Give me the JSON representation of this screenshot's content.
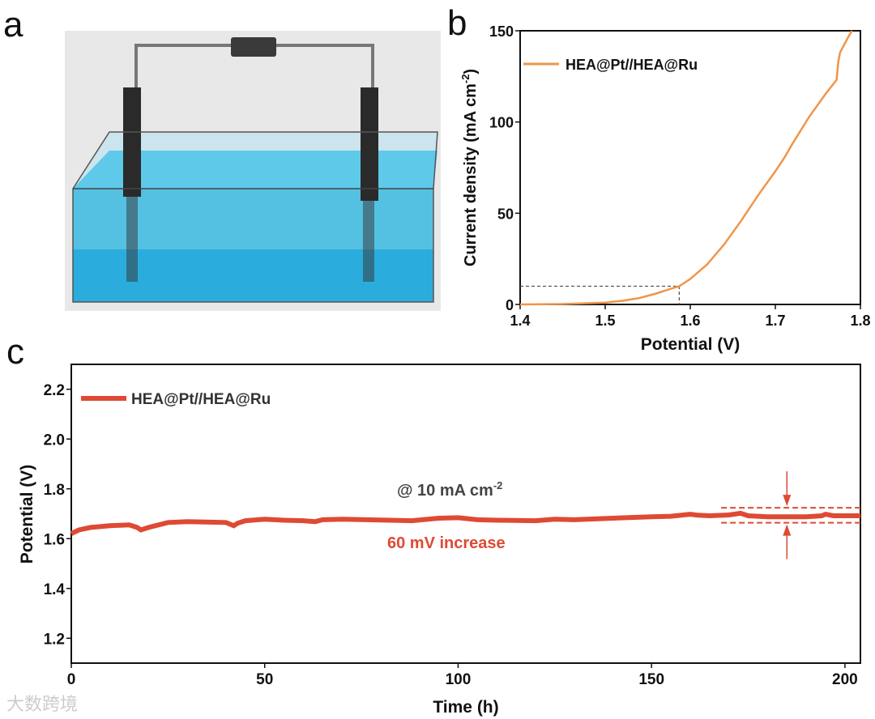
{
  "panel_labels": {
    "a": "a",
    "b": "b",
    "c": "c"
  },
  "watermark": "大数跨境",
  "colors": {
    "lsv": "#f0954a",
    "stability": "#de4a34",
    "water": "#3ab8e0",
    "electrode": "#2a2a2a"
  },
  "chart_data": [
    {
      "id": "b",
      "type": "line",
      "xlabel": "Potential (V)",
      "ylabel": "Current density (mA cm-2)",
      "ylabel_main": "Current density (mA cm",
      "ylabel_sup": "-2",
      "ylabel_end": ")",
      "xlim": [
        1.4,
        1.8
      ],
      "ylim": [
        0,
        150
      ],
      "xticks": [
        "1.4",
        "1.5",
        "1.6",
        "1.7",
        "1.8"
      ],
      "yticks": [
        "0",
        "50",
        "100",
        "150"
      ],
      "legend": "HEA@Pt//HEA@Ru",
      "legend_position": "top-left",
      "reference_point": {
        "x": 1.587,
        "y": 10
      },
      "series": [
        {
          "name": "HEA@Pt//HEA@Ru",
          "x": [
            1.4,
            1.45,
            1.5,
            1.52,
            1.54,
            1.56,
            1.57,
            1.58,
            1.587,
            1.6,
            1.62,
            1.64,
            1.66,
            1.68,
            1.7,
            1.71,
            1.715,
            1.72,
            1.74,
            1.76,
            1.772,
            1.774,
            1.776,
            1.785,
            1.79
          ],
          "y": [
            0,
            0.2,
            1,
            2,
            3.5,
            6,
            7.5,
            9,
            10,
            14,
            22,
            33,
            46,
            60,
            73,
            80,
            84,
            88,
            103,
            116,
            123,
            133,
            138,
            146,
            150
          ]
        }
      ]
    },
    {
      "id": "c",
      "type": "line",
      "xlabel": "Time (h)",
      "ylabel": "Potential (V)",
      "xlim": [
        0,
        204
      ],
      "ylim": [
        1.1,
        2.3
      ],
      "xticks": [
        "0",
        "50",
        "100",
        "150",
        "200"
      ],
      "yticks": [
        "1.2",
        "1.4",
        "1.6",
        "1.8",
        "2.0",
        "2.2"
      ],
      "legend": "HEA@Pt//HEA@Ru",
      "legend_position": "top-left",
      "annotations": {
        "condition": "@ 10 mA cm",
        "condition_sup": "-2",
        "increase": "60 mV increase"
      },
      "band": [
        1.664,
        1.724
      ],
      "arrow_x": 185,
      "series": [
        {
          "name": "HEA@Pt//HEA@Ru",
          "x": [
            0,
            2,
            5,
            10,
            15,
            17,
            18,
            20,
            25,
            30,
            40,
            42,
            43,
            45,
            50,
            55,
            60,
            63,
            65,
            70,
            80,
            88,
            95,
            100,
            105,
            110,
            120,
            125,
            130,
            140,
            150,
            155,
            160,
            162,
            165,
            170,
            173,
            175,
            180,
            190,
            194,
            195,
            197,
            204
          ],
          "y": [
            1.62,
            1.635,
            1.645,
            1.652,
            1.655,
            1.645,
            1.635,
            1.645,
            1.665,
            1.668,
            1.665,
            1.652,
            1.662,
            1.672,
            1.678,
            1.674,
            1.672,
            1.668,
            1.676,
            1.678,
            1.675,
            1.672,
            1.682,
            1.684,
            1.676,
            1.674,
            1.672,
            1.678,
            1.676,
            1.682,
            1.688,
            1.69,
            1.698,
            1.694,
            1.692,
            1.695,
            1.702,
            1.692,
            1.688,
            1.688,
            1.692,
            1.698,
            1.692,
            1.692
          ]
        }
      ]
    }
  ]
}
